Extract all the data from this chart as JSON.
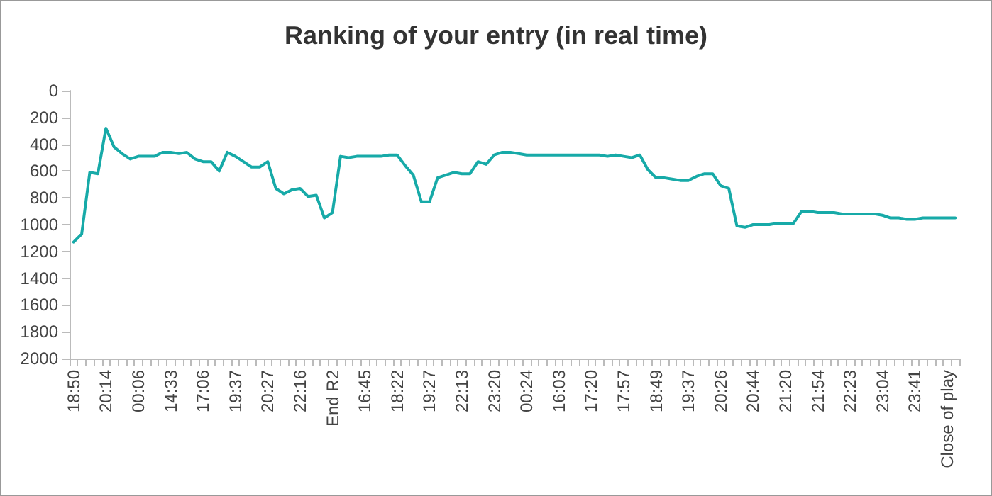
{
  "chart_data": {
    "type": "line",
    "title": "Ranking of your entry (in real time)",
    "categories": [
      "18:50",
      null,
      null,
      null,
      "20:14",
      null,
      null,
      null,
      "00:06",
      null,
      null,
      null,
      "14:33",
      null,
      null,
      null,
      "17:06",
      null,
      null,
      null,
      "19:37",
      null,
      null,
      null,
      "20:27",
      null,
      null,
      null,
      "22:16",
      null,
      null,
      null,
      "End R2",
      null,
      null,
      null,
      "16:45",
      null,
      null,
      null,
      "18:22",
      null,
      null,
      null,
      "19:27",
      null,
      null,
      null,
      "22:13",
      null,
      null,
      null,
      "23:20",
      null,
      null,
      null,
      "00:24",
      null,
      null,
      null,
      "16:03",
      null,
      null,
      null,
      "17:20",
      null,
      null,
      null,
      "17:57",
      null,
      null,
      null,
      "18:49",
      null,
      null,
      null,
      "19:37",
      null,
      null,
      null,
      "20:26",
      null,
      null,
      null,
      "20:44",
      null,
      null,
      null,
      "21:20",
      null,
      null,
      null,
      "21:54",
      null,
      null,
      null,
      "22:23",
      null,
      null,
      null,
      "23:04",
      null,
      null,
      null,
      "23:41",
      null,
      null,
      null,
      "Close of play",
      null
    ],
    "series": [
      {
        "color": "#17aaa8",
        "values": [
          1130,
          1070,
          610,
          620,
          280,
          420,
          470,
          510,
          490,
          490,
          490,
          460,
          460,
          470,
          460,
          510,
          530,
          530,
          600,
          460,
          490,
          530,
          570,
          570,
          530,
          730,
          770,
          740,
          730,
          790,
          780,
          950,
          910,
          490,
          500,
          490,
          490,
          490,
          490,
          480,
          480,
          560,
          630,
          830,
          830,
          650,
          630,
          610,
          620,
          620,
          530,
          550,
          480,
          460,
          460,
          470,
          480,
          480,
          480,
          480,
          480,
          480,
          480,
          480,
          480,
          480,
          490,
          480,
          490,
          500,
          480,
          590,
          650,
          650,
          660,
          670,
          670,
          640,
          620,
          620,
          710,
          730,
          1010,
          1020,
          1000,
          1000,
          1000,
          990,
          990,
          990,
          900,
          900,
          910,
          910,
          910,
          920,
          920,
          920,
          920,
          920,
          930,
          950,
          950,
          960,
          960,
          950,
          950,
          950,
          950,
          950
        ]
      }
    ],
    "ylim": [
      2000,
      0
    ],
    "yticks": [
      0,
      200,
      400,
      600,
      800,
      1000,
      1200,
      1400,
      1600,
      1800,
      2000
    ],
    "marker": "none",
    "line_style": "solid"
  }
}
